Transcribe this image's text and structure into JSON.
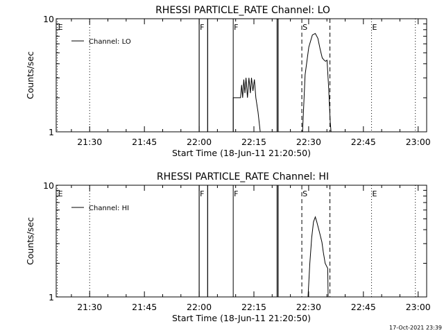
{
  "chart_data": [
    {
      "type": "line",
      "title": "RHESSI PARTICLE_RATE Channel: LO",
      "xlabel": "Start Time (18-Jun-11 21:20:50)",
      "ylabel": "Counts/sec",
      "yscale": "log",
      "ylim": [
        1,
        10
      ],
      "yticks": [
        "1",
        "10"
      ],
      "xlim_minutes_from_start": [
        0,
        101.5
      ],
      "xtick_labels": [
        "21:30",
        "21:45",
        "22:00",
        "22:15",
        "22:30",
        "22:45",
        "23:00"
      ],
      "xtick_minutes": [
        9.17,
        24.17,
        39.17,
        54.17,
        69.17,
        84.17,
        99.17
      ],
      "legend": {
        "entries": [
          "Channel: LO"
        ],
        "placement": "top-left"
      },
      "series": [
        {
          "name": "Channel: LO",
          "points": [
            [
              39.17,
              1
            ],
            [
              39.17,
              10
            ],
            [
              41.5,
              10
            ],
            [
              41.5,
              1
            ],
            [
              48.5,
              1
            ],
            [
              48.5,
              2.0
            ],
            [
              50.5,
              2.0
            ],
            [
              50.8,
              2.6
            ],
            [
              51.1,
              2.0
            ],
            [
              51.4,
              2.9
            ],
            [
              51.7,
              2.2
            ],
            [
              52.0,
              3.0
            ],
            [
              52.4,
              2.0
            ],
            [
              52.8,
              3.0
            ],
            [
              53.2,
              2.2
            ],
            [
              53.5,
              3.0
            ],
            [
              53.9,
              2.3
            ],
            [
              54.3,
              2.9
            ],
            [
              54.7,
              2.0
            ],
            [
              55.3,
              1.5
            ],
            [
              55.9,
              1
            ],
            [
              60.5,
              1
            ],
            [
              60.5,
              10
            ],
            [
              60.8,
              10
            ],
            [
              60.8,
              1
            ],
            [
              67.5,
              1
            ],
            [
              68.2,
              3.2
            ],
            [
              69.2,
              5.6
            ],
            [
              70.2,
              7.2
            ],
            [
              71.0,
              7.4
            ],
            [
              71.7,
              6.7
            ],
            [
              72.3,
              5.4
            ],
            [
              72.9,
              4.5
            ],
            [
              73.4,
              4.3
            ],
            [
              73.8,
              4.2
            ],
            [
              74.2,
              4.3
            ],
            [
              74.6,
              2.6
            ],
            [
              75.1,
              1.2
            ],
            [
              75.3,
              1
            ]
          ]
        }
      ],
      "vertical_lines": [
        {
          "label": "E",
          "minute": 0.3,
          "style": "dotted"
        },
        {
          "label": "",
          "minute": 9.17,
          "style": "dotted"
        },
        {
          "label": "F",
          "minute": 39.17,
          "style": "solid"
        },
        {
          "label": "",
          "minute": 41.5,
          "style": "solid"
        },
        {
          "label": "F",
          "minute": 48.5,
          "style": "solid"
        },
        {
          "label": "",
          "minute": 60.8,
          "style": "solid"
        },
        {
          "label": "S",
          "minute": 67.3,
          "style": "dashed"
        },
        {
          "label": "",
          "minute": 75.0,
          "style": "dashed"
        },
        {
          "label": "E",
          "minute": 86.4,
          "style": "dotted"
        },
        {
          "label": "",
          "minute": 98.4,
          "style": "dotted"
        }
      ]
    },
    {
      "type": "line",
      "title": "RHESSI PARTICLE_RATE Channel: HI",
      "xlabel": "Start Time (18-Jun-11 21:20:50)",
      "ylabel": "Counts/sec",
      "yscale": "log",
      "ylim": [
        1,
        10
      ],
      "yticks": [
        "1",
        "10"
      ],
      "xlim_minutes_from_start": [
        0,
        101.5
      ],
      "xtick_labels": [
        "21:30",
        "21:45",
        "22:00",
        "22:15",
        "22:30",
        "22:45",
        "23:00"
      ],
      "xtick_minutes": [
        9.17,
        24.17,
        39.17,
        54.17,
        69.17,
        84.17,
        99.17
      ],
      "legend": {
        "entries": [
          "Channel: HI"
        ],
        "placement": "top-left"
      },
      "series": [
        {
          "name": "Channel: HI",
          "points": [
            [
              39.17,
              1
            ],
            [
              39.17,
              10
            ],
            [
              41.5,
              10
            ],
            [
              41.5,
              1
            ],
            [
              60.5,
              1
            ],
            [
              60.5,
              10
            ],
            [
              60.8,
              10
            ],
            [
              60.8,
              1
            ],
            [
              69.0,
              1
            ],
            [
              69.5,
              2.0
            ],
            [
              70.0,
              3.4
            ],
            [
              70.5,
              4.7
            ],
            [
              71.0,
              5.2
            ],
            [
              71.4,
              4.7
            ],
            [
              71.8,
              4.2
            ],
            [
              72.3,
              3.6
            ],
            [
              72.8,
              3.1
            ],
            [
              73.2,
              2.5
            ],
            [
              73.7,
              2.0
            ],
            [
              74.4,
              1.8
            ],
            [
              74.5,
              1
            ]
          ]
        }
      ],
      "vertical_lines": [
        {
          "label": "E",
          "minute": 0.3,
          "style": "dotted"
        },
        {
          "label": "",
          "minute": 9.17,
          "style": "dotted"
        },
        {
          "label": "F",
          "minute": 39.17,
          "style": "solid"
        },
        {
          "label": "",
          "minute": 41.5,
          "style": "solid"
        },
        {
          "label": "F",
          "minute": 48.5,
          "style": "solid"
        },
        {
          "label": "",
          "minute": 60.8,
          "style": "solid"
        },
        {
          "label": "S",
          "minute": 67.3,
          "style": "dashed"
        },
        {
          "label": "",
          "minute": 75.0,
          "style": "dashed"
        },
        {
          "label": "E",
          "minute": 86.4,
          "style": "dotted"
        },
        {
          "label": "",
          "minute": 98.4,
          "style": "dotted"
        }
      ]
    }
  ],
  "footer": {
    "timestamp": "17-Oct-2021 23:39"
  }
}
